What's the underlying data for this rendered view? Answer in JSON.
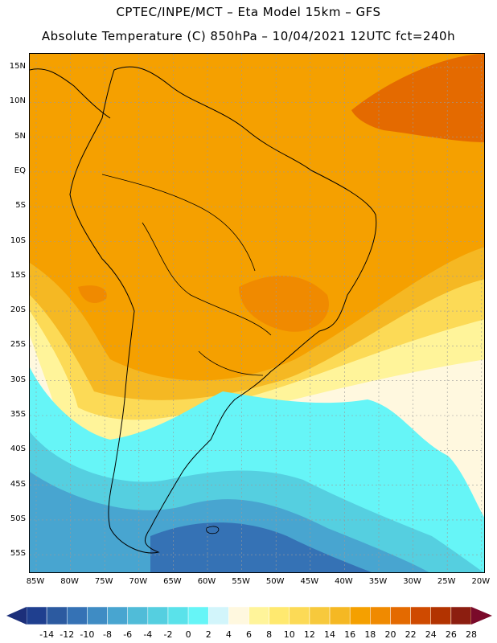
{
  "header": {
    "title_line1": "CPTEC/INPE/MCT –  Eta Model 15km – GFS",
    "title_line2": "Absolute Temperature (C) 850hPa – 10/04/2021 12UTC fct=240h"
  },
  "map": {
    "lat_labels": [
      "15N",
      "10N",
      "5N",
      "EQ",
      "5S",
      "10S",
      "15S",
      "20S",
      "25S",
      "30S",
      "35S",
      "40S",
      "45S",
      "50S",
      "55S"
    ],
    "lon_labels": [
      "85W",
      "80W",
      "75W",
      "70W",
      "65W",
      "60W",
      "55W",
      "50W",
      "45W",
      "40W",
      "35W",
      "30W",
      "25W",
      "20W"
    ]
  },
  "colorbar": {
    "labels": [
      "-14",
      "-12",
      "-10",
      "-8",
      "-6",
      "-4",
      "-2",
      "0",
      "2",
      "4",
      "6",
      "8",
      "10",
      "12",
      "14",
      "16",
      "18",
      "20",
      "22",
      "24",
      "26",
      "28"
    ],
    "colors": [
      "#1f3f8f",
      "#2c5aa0",
      "#3572b5",
      "#3f8cc4",
      "#48a5d0",
      "#50bcd8",
      "#55cfe0",
      "#5ae2ea",
      "#66f5f7",
      "#d2f5fb",
      "#fff8df",
      "#fff49a",
      "#ffe96f",
      "#fcda56",
      "#f7c93c",
      "#f5b823",
      "#f5a000",
      "#f08a00",
      "#e46a00",
      "#cf4a00",
      "#b23300",
      "#8c1e10"
    ],
    "low_arrow_color": "#1c2f7a",
    "high_arrow_color": "#7a0a2a"
  }
}
